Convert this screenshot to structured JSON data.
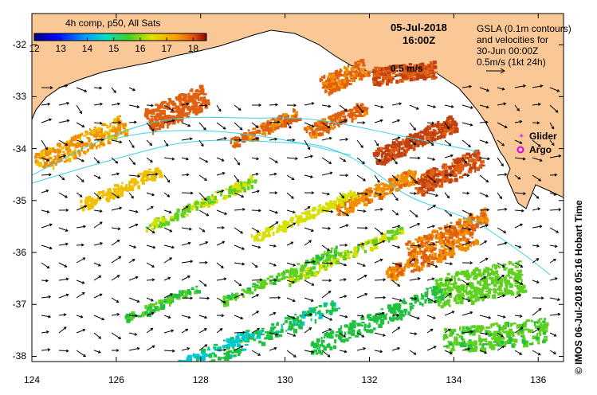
{
  "colorbar": {
    "title": "4h comp, p50, All Sats",
    "ticks": [
      "12",
      "13",
      "14",
      "15",
      "16",
      "17",
      "18"
    ],
    "range": [
      12,
      18.5
    ]
  },
  "timestamp": {
    "date": "05-Jul-2018",
    "time": "16:00Z"
  },
  "velocity_note": {
    "line1": "GSLA (0.1m contours)",
    "line2": "and velocities for",
    "line3": "30-Jun 00:00Z",
    "line4": "0.5m/s (1kt 24h)"
  },
  "scale_label": "0.5 m/s",
  "legend": {
    "glider": "Glider",
    "argo": "Argo"
  },
  "axes": {
    "x_ticks": [
      "124",
      "126",
      "128",
      "130",
      "132",
      "134",
      "136"
    ],
    "y_ticks": [
      "-32",
      "-33",
      "-34",
      "-35",
      "-36",
      "-37",
      "-38"
    ],
    "lon_range": [
      124,
      136.6
    ],
    "lat_range": [
      -31.4,
      -38.1
    ]
  },
  "credit": "© IMOS 06-Jul-2018 05:16 Hobart Time",
  "colors": {
    "land": "#f9c896",
    "contour": "#38d2e6",
    "glider": "#e040e0",
    "argo": "#e000e0"
  }
}
